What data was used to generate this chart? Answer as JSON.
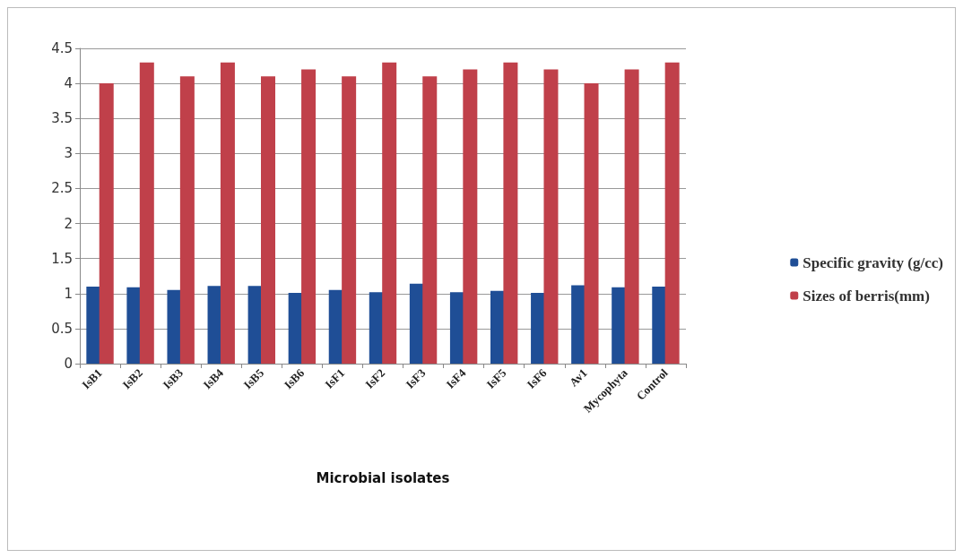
{
  "chart_data": {
    "type": "bar",
    "xlabel": "Microbial isolates",
    "categories": [
      "IsB1",
      "IsB2",
      "IsB3",
      "IsB4",
      "IsB5",
      "IsB6",
      "IsF1",
      "IsF2",
      "IsF3",
      "IsF4",
      "IsF5",
      "IsF6",
      "Av1",
      "Mycophyta",
      "Control"
    ],
    "series": [
      {
        "name": "Specific gravity (g/cc)",
        "color": "#1f4e96",
        "values": [
          1.1,
          1.09,
          1.05,
          1.11,
          1.11,
          1.01,
          1.05,
          1.02,
          1.14,
          1.02,
          1.04,
          1.01,
          1.12,
          1.09,
          1.1
        ]
      },
      {
        "name": "Sizes of berris(mm)",
        "color": "#c0404a",
        "values": [
          4.0,
          4.3,
          4.1,
          4.3,
          4.1,
          4.2,
          4.1,
          4.3,
          4.1,
          4.2,
          4.3,
          4.2,
          4.0,
          4.2,
          4.3
        ]
      }
    ],
    "ylim": [
      0,
      4.5
    ],
    "yticks": [
      0,
      0.5,
      1,
      1.5,
      2,
      2.5,
      3,
      3.5,
      4,
      4.5
    ],
    "grid": "y",
    "legend": "right"
  }
}
